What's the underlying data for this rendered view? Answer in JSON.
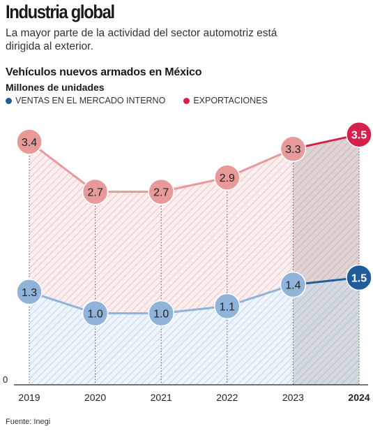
{
  "header": {
    "headline": "Industria global",
    "subtitle": "La mayor parte de la actividad del sector automotriz está dirigida al exterior."
  },
  "legend": {
    "domestic_label": "VENTAS EN EL MERCADO INTERNO",
    "export_label": "EXPORTACIONES"
  },
  "footer": {
    "source": "Fuente: Inegi"
  },
  "colors": {
    "export_light": "#e89a9a",
    "export_strong": "#d6204a",
    "domestic_light": "#8fb3d9",
    "domestic_strong": "#1f5c99"
  },
  "chart_data": {
    "type": "area",
    "title": "Vehículos nuevos armados en México",
    "ylabel": "Millones de unidades",
    "ylim": [
      0,
      3.8
    ],
    "grid": false,
    "legend_position": "top-left",
    "categories": [
      "2019",
      "2020",
      "2021",
      "2022",
      "2023",
      "2024"
    ],
    "highlight_category": "2024",
    "baseline_label": "0",
    "series": [
      {
        "name": "VENTAS EN EL MERCADO INTERNO",
        "values": [
          1.3,
          1.0,
          1.0,
          1.1,
          1.4,
          1.5
        ],
        "labels": [
          "1.3",
          "1.0",
          "1.0",
          "1.1",
          "1.4",
          "1.5"
        ]
      },
      {
        "name": "EXPORTACIONES",
        "values": [
          3.4,
          2.7,
          2.7,
          2.9,
          3.3,
          3.5
        ],
        "labels": [
          "3.4",
          "2.7",
          "2.7",
          "2.9",
          "3.3",
          "3.5"
        ]
      }
    ]
  }
}
